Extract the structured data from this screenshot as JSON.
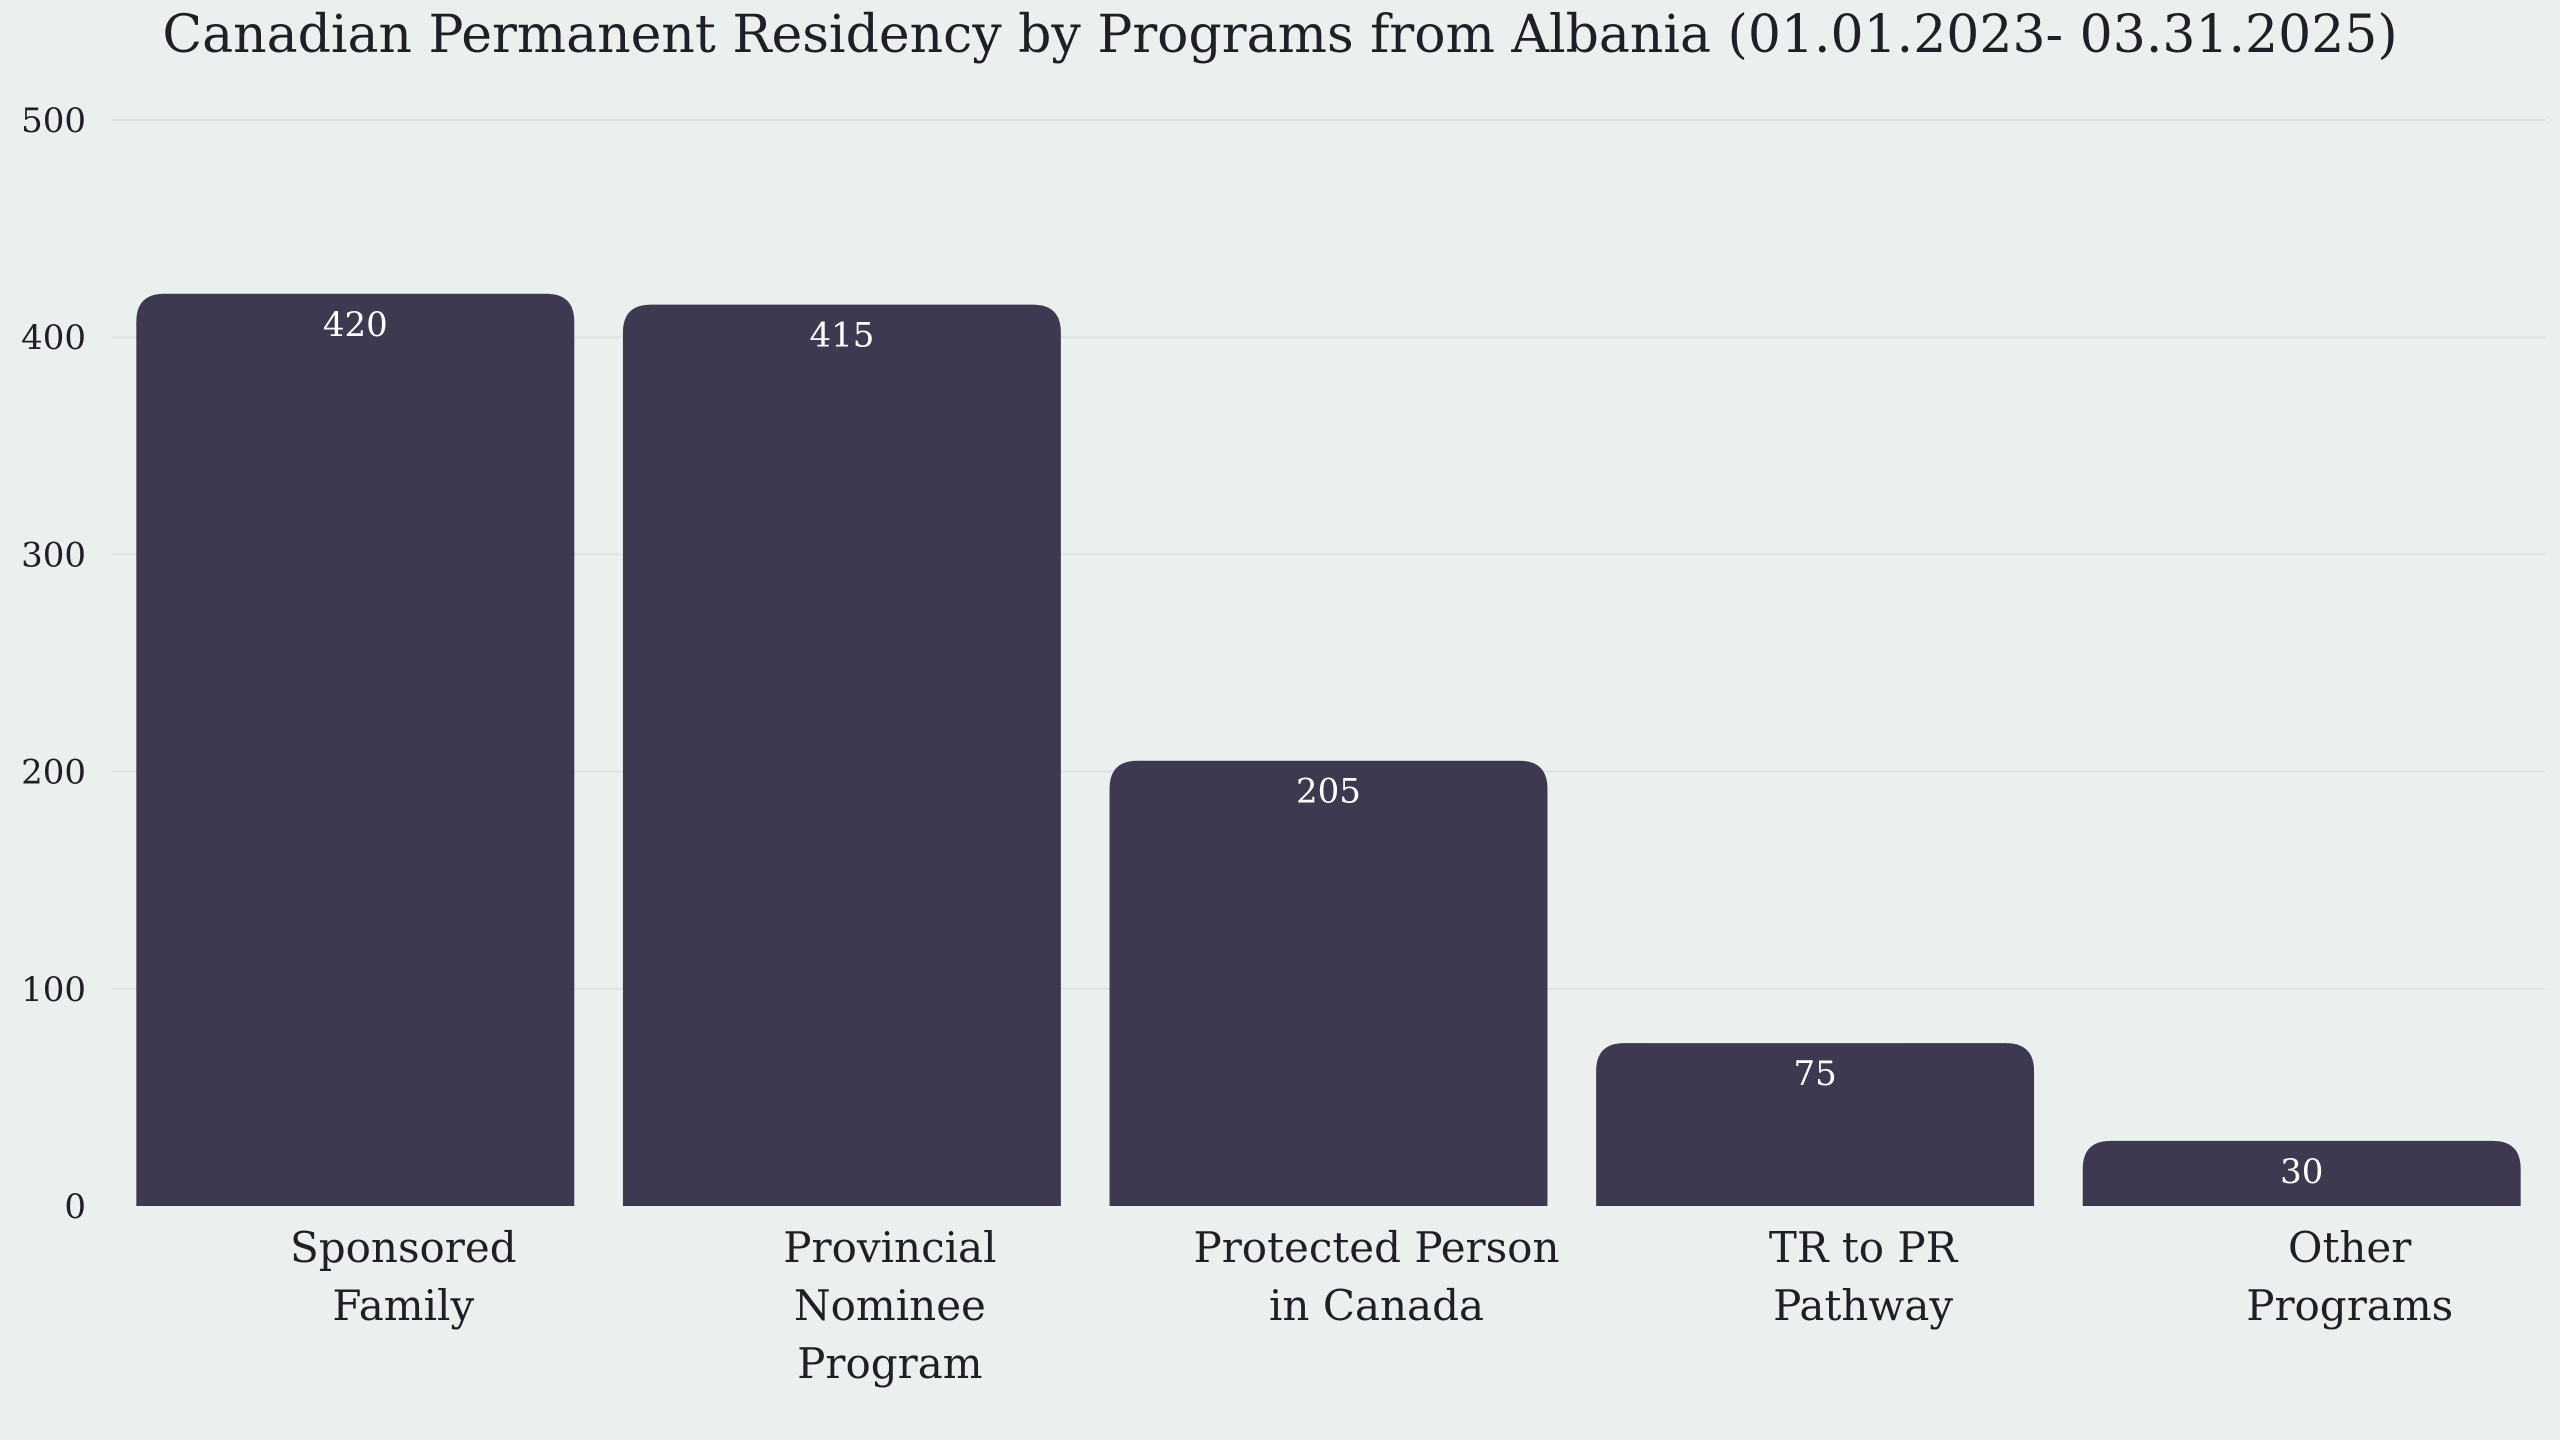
{
  "chart_data": {
    "type": "bar",
    "title": "Canadian Permanent Residency by Programs from Albania (01.01.2023- 03.31.2025)",
    "xlabel": "",
    "ylabel": "",
    "categories": [
      [
        "Sponsored",
        "Family"
      ],
      [
        "Provincial",
        "Nominee",
        "Program"
      ],
      [
        "Protected Person",
        "in Canada"
      ],
      [
        "TR to PR",
        "Pathway"
      ],
      [
        "Other",
        "Programs"
      ]
    ],
    "values": [
      420,
      415,
      205,
      75,
      30
    ],
    "ylim": [
      0,
      500
    ],
    "yticks": [
      0,
      100,
      200,
      300,
      400,
      500
    ],
    "grid": true,
    "legend": "none",
    "colors": {
      "bar": "#3d3950",
      "background": "#ebefee",
      "grid": "#dee3e2",
      "text": "#1f1f26",
      "data_label": "#ffffff"
    }
  }
}
